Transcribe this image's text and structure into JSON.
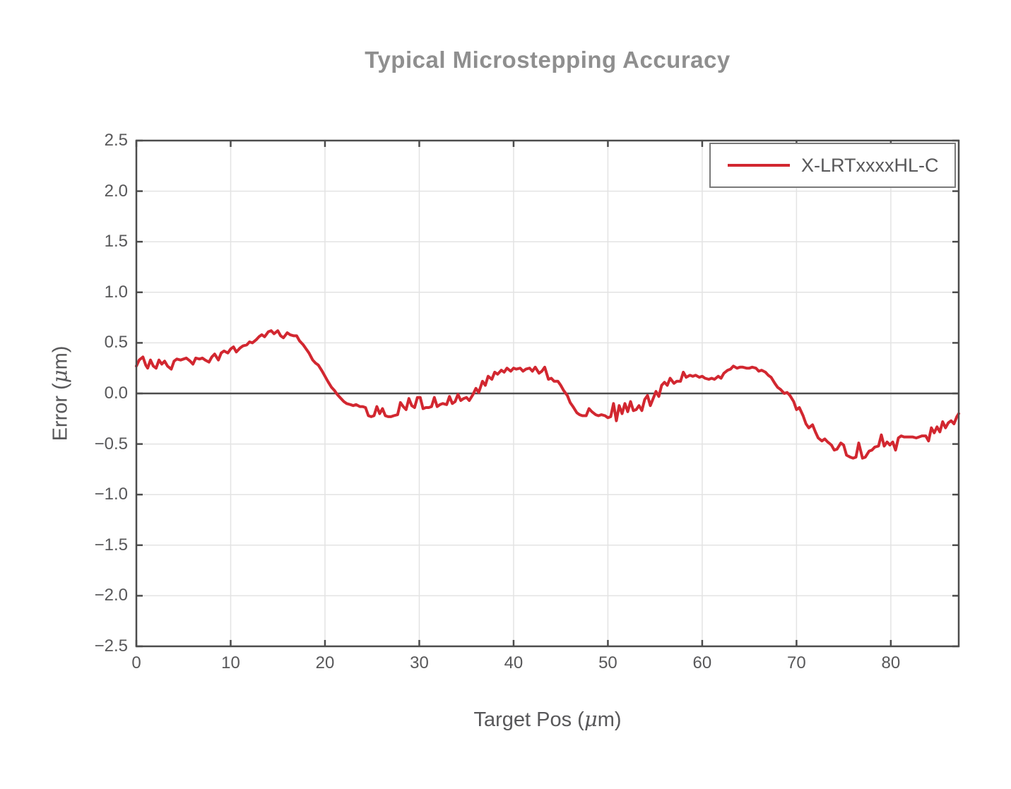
{
  "colors": {
    "background": "#ffffff",
    "series_red": "#d22730",
    "title_gray": "#8f8f8f",
    "axis_text": "#58585a",
    "spine": "#4c4c4c",
    "grid": "#e3e3e3",
    "zero_line": "#4c4c4c"
  },
  "chart_data": {
    "type": "line",
    "title": "Typical Microstepping Accuracy",
    "xlabel": "Target Pos (μm)",
    "ylabel": "Error (μm)",
    "xlim": [
      0,
      87.2
    ],
    "ylim": [
      -2.5,
      2.5
    ],
    "xticks": [
      0,
      10,
      20,
      30,
      40,
      50,
      60,
      70,
      80
    ],
    "yticks": [
      -2.5,
      -2.0,
      -1.5,
      -1.0,
      -0.5,
      0.0,
      0.5,
      1.0,
      1.5,
      2.0,
      2.5
    ],
    "grid": true,
    "zero_line": true,
    "legend": {
      "position": "top-right",
      "entries": [
        "X-LRTxxxxHL-C"
      ]
    },
    "series": [
      {
        "name": "X-LRTxxxxHL-C",
        "color": "#d22730",
        "points": [
          [
            0,
            0.27
          ],
          [
            0.3,
            0.33
          ],
          [
            0.7,
            0.36
          ],
          [
            1,
            0.28
          ],
          [
            1.2,
            0.25
          ],
          [
            1.5,
            0.33
          ],
          [
            1.8,
            0.27
          ],
          [
            2.1,
            0.25
          ],
          [
            2.4,
            0.33
          ],
          [
            2.7,
            0.29
          ],
          [
            3,
            0.32
          ],
          [
            3.3,
            0.27
          ],
          [
            3.7,
            0.24
          ],
          [
            4,
            0.32
          ],
          [
            4.3,
            0.34
          ],
          [
            4.7,
            0.33
          ],
          [
            5,
            0.34
          ],
          [
            5.3,
            0.35
          ],
          [
            5.7,
            0.32
          ],
          [
            6,
            0.29
          ],
          [
            6.3,
            0.35
          ],
          [
            6.7,
            0.34
          ],
          [
            7,
            0.35
          ],
          [
            7.3,
            0.33
          ],
          [
            7.7,
            0.31
          ],
          [
            8,
            0.36
          ],
          [
            8.3,
            0.39
          ],
          [
            8.7,
            0.33
          ],
          [
            9,
            0.4
          ],
          [
            9.3,
            0.42
          ],
          [
            9.7,
            0.4
          ],
          [
            10,
            0.44
          ],
          [
            10.3,
            0.46
          ],
          [
            10.6,
            0.41
          ],
          [
            11,
            0.45
          ],
          [
            11.3,
            0.47
          ],
          [
            11.7,
            0.48
          ],
          [
            12,
            0.51
          ],
          [
            12.3,
            0.5
          ],
          [
            12.7,
            0.53
          ],
          [
            13,
            0.56
          ],
          [
            13.3,
            0.58
          ],
          [
            13.6,
            0.56
          ],
          [
            14,
            0.61
          ],
          [
            14.3,
            0.62
          ],
          [
            14.6,
            0.59
          ],
          [
            15,
            0.62
          ],
          [
            15.3,
            0.57
          ],
          [
            15.6,
            0.55
          ],
          [
            16,
            0.6
          ],
          [
            16.3,
            0.58
          ],
          [
            16.7,
            0.57
          ],
          [
            17,
            0.57
          ],
          [
            17.3,
            0.52
          ],
          [
            17.7,
            0.48
          ],
          [
            18,
            0.44
          ],
          [
            18.3,
            0.4
          ],
          [
            18.7,
            0.33
          ],
          [
            19,
            0.3
          ],
          [
            19.3,
            0.28
          ],
          [
            19.7,
            0.22
          ],
          [
            20,
            0.17
          ],
          [
            20.3,
            0.12
          ],
          [
            20.7,
            0.06
          ],
          [
            21,
            0.03
          ],
          [
            21.3,
            -0.01
          ],
          [
            21.7,
            -0.05
          ],
          [
            22,
            -0.08
          ],
          [
            22.3,
            -0.1
          ],
          [
            22.7,
            -0.11
          ],
          [
            23,
            -0.12
          ],
          [
            23.3,
            -0.11
          ],
          [
            23.7,
            -0.13
          ],
          [
            24,
            -0.13
          ],
          [
            24.3,
            -0.14
          ],
          [
            24.6,
            -0.22
          ],
          [
            24.9,
            -0.23
          ],
          [
            25.2,
            -0.22
          ],
          [
            25.5,
            -0.13
          ],
          [
            25.8,
            -0.2
          ],
          [
            26.1,
            -0.15
          ],
          [
            26.4,
            -0.22
          ],
          [
            26.7,
            -0.23
          ],
          [
            27,
            -0.23
          ],
          [
            27.3,
            -0.22
          ],
          [
            27.7,
            -0.21
          ],
          [
            28,
            -0.09
          ],
          [
            28.3,
            -0.13
          ],
          [
            28.6,
            -0.16
          ],
          [
            28.9,
            -0.05
          ],
          [
            29.2,
            -0.12
          ],
          [
            29.5,
            -0.14
          ],
          [
            29.8,
            -0.04
          ],
          [
            30.1,
            -0.04
          ],
          [
            30.4,
            -0.15
          ],
          [
            30.7,
            -0.14
          ],
          [
            31,
            -0.14
          ],
          [
            31.3,
            -0.13
          ],
          [
            31.6,
            -0.04
          ],
          [
            31.9,
            -0.13
          ],
          [
            32.2,
            -0.11
          ],
          [
            32.5,
            -0.1
          ],
          [
            32.9,
            -0.11
          ],
          [
            33.2,
            -0.03
          ],
          [
            33.5,
            -0.1
          ],
          [
            33.8,
            -0.08
          ],
          [
            34.1,
            -0.01
          ],
          [
            34.4,
            -0.07
          ],
          [
            34.7,
            -0.05
          ],
          [
            35,
            -0.04
          ],
          [
            35.3,
            -0.07
          ],
          [
            35.7,
            -0.01
          ],
          [
            36,
            0.05
          ],
          [
            36.3,
            0.01
          ],
          [
            36.7,
            0.12
          ],
          [
            37,
            0.08
          ],
          [
            37.3,
            0.17
          ],
          [
            37.7,
            0.14
          ],
          [
            38,
            0.21
          ],
          [
            38.3,
            0.19
          ],
          [
            38.7,
            0.23
          ],
          [
            39,
            0.21
          ],
          [
            39.3,
            0.25
          ],
          [
            39.7,
            0.22
          ],
          [
            40,
            0.25
          ],
          [
            40.3,
            0.24
          ],
          [
            40.7,
            0.25
          ],
          [
            41,
            0.22
          ],
          [
            41.3,
            0.24
          ],
          [
            41.7,
            0.25
          ],
          [
            42,
            0.22
          ],
          [
            42.3,
            0.26
          ],
          [
            42.7,
            0.2
          ],
          [
            43,
            0.22
          ],
          [
            43.3,
            0.26
          ],
          [
            43.7,
            0.14
          ],
          [
            44,
            0.15
          ],
          [
            44.3,
            0.12
          ],
          [
            44.7,
            0.12
          ],
          [
            45,
            0.08
          ],
          [
            45.3,
            0.03
          ],
          [
            45.7,
            -0.02
          ],
          [
            46,
            -0.09
          ],
          [
            46.3,
            -0.13
          ],
          [
            46.7,
            -0.19
          ],
          [
            47,
            -0.21
          ],
          [
            47.3,
            -0.22
          ],
          [
            47.7,
            -0.22
          ],
          [
            48,
            -0.15
          ],
          [
            48.3,
            -0.18
          ],
          [
            48.7,
            -0.21
          ],
          [
            49,
            -0.22
          ],
          [
            49.3,
            -0.21
          ],
          [
            49.7,
            -0.22
          ],
          [
            50,
            -0.24
          ],
          [
            50.3,
            -0.23
          ],
          [
            50.6,
            -0.1
          ],
          [
            50.9,
            -0.27
          ],
          [
            51.2,
            -0.12
          ],
          [
            51.5,
            -0.2
          ],
          [
            51.8,
            -0.1
          ],
          [
            52.1,
            -0.18
          ],
          [
            52.4,
            -0.08
          ],
          [
            52.7,
            -0.17
          ],
          [
            53,
            -0.16
          ],
          [
            53.3,
            -0.12
          ],
          [
            53.6,
            -0.17
          ],
          [
            53.9,
            -0.06
          ],
          [
            54.2,
            -0.02
          ],
          [
            54.5,
            -0.12
          ],
          [
            54.8,
            -0.05
          ],
          [
            55.1,
            0.02
          ],
          [
            55.4,
            -0.03
          ],
          [
            55.7,
            0.08
          ],
          [
            56,
            0.11
          ],
          [
            56.3,
            0.08
          ],
          [
            56.6,
            0.15
          ],
          [
            57,
            0.1
          ],
          [
            57.3,
            0.12
          ],
          [
            57.7,
            0.12
          ],
          [
            58,
            0.21
          ],
          [
            58.3,
            0.16
          ],
          [
            58.7,
            0.18
          ],
          [
            59,
            0.17
          ],
          [
            59.3,
            0.18
          ],
          [
            59.7,
            0.16
          ],
          [
            60,
            0.17
          ],
          [
            60.3,
            0.15
          ],
          [
            60.7,
            0.14
          ],
          [
            61,
            0.15
          ],
          [
            61.3,
            0.14
          ],
          [
            61.7,
            0.17
          ],
          [
            62,
            0.15
          ],
          [
            62.3,
            0.2
          ],
          [
            62.7,
            0.23
          ],
          [
            63,
            0.24
          ],
          [
            63.3,
            0.27
          ],
          [
            63.7,
            0.25
          ],
          [
            64,
            0.26
          ],
          [
            64.3,
            0.26
          ],
          [
            64.7,
            0.25
          ],
          [
            65,
            0.25
          ],
          [
            65.3,
            0.26
          ],
          [
            65.7,
            0.25
          ],
          [
            66,
            0.22
          ],
          [
            66.3,
            0.23
          ],
          [
            66.7,
            0.21
          ],
          [
            67,
            0.18
          ],
          [
            67.3,
            0.16
          ],
          [
            67.7,
            0.1
          ],
          [
            68,
            0.06
          ],
          [
            68.3,
            0.04
          ],
          [
            68.7,
            0.0
          ],
          [
            69,
            0.01
          ],
          [
            69.3,
            -0.02
          ],
          [
            69.7,
            -0.08
          ],
          [
            70,
            -0.16
          ],
          [
            70.3,
            -0.14
          ],
          [
            70.7,
            -0.22
          ],
          [
            71,
            -0.3
          ],
          [
            71.3,
            -0.34
          ],
          [
            71.7,
            -0.31
          ],
          [
            72,
            -0.38
          ],
          [
            72.3,
            -0.44
          ],
          [
            72.7,
            -0.47
          ],
          [
            73,
            -0.45
          ],
          [
            73.3,
            -0.48
          ],
          [
            73.7,
            -0.51
          ],
          [
            74,
            -0.56
          ],
          [
            74.3,
            -0.55
          ],
          [
            74.7,
            -0.49
          ],
          [
            75,
            -0.51
          ],
          [
            75.3,
            -0.61
          ],
          [
            75.7,
            -0.63
          ],
          [
            76,
            -0.64
          ],
          [
            76.3,
            -0.63
          ],
          [
            76.6,
            -0.49
          ],
          [
            77,
            -0.64
          ],
          [
            77.3,
            -0.63
          ],
          [
            77.7,
            -0.57
          ],
          [
            78,
            -0.56
          ],
          [
            78.3,
            -0.53
          ],
          [
            78.7,
            -0.52
          ],
          [
            79,
            -0.41
          ],
          [
            79.3,
            -0.52
          ],
          [
            79.6,
            -0.48
          ],
          [
            79.9,
            -0.51
          ],
          [
            80.2,
            -0.48
          ],
          [
            80.5,
            -0.56
          ],
          [
            80.8,
            -0.44
          ],
          [
            81.1,
            -0.42
          ],
          [
            81.4,
            -0.43
          ],
          [
            81.7,
            -0.43
          ],
          [
            82,
            -0.43
          ],
          [
            82.3,
            -0.43
          ],
          [
            82.7,
            -0.44
          ],
          [
            83,
            -0.43
          ],
          [
            83.3,
            -0.42
          ],
          [
            83.7,
            -0.42
          ],
          [
            84,
            -0.47
          ],
          [
            84.3,
            -0.34
          ],
          [
            84.6,
            -0.39
          ],
          [
            84.9,
            -0.33
          ],
          [
            85.2,
            -0.38
          ],
          [
            85.5,
            -0.28
          ],
          [
            85.8,
            -0.34
          ],
          [
            86.1,
            -0.29
          ],
          [
            86.4,
            -0.27
          ],
          [
            86.7,
            -0.3
          ],
          [
            87,
            -0.23
          ],
          [
            87.2,
            -0.2
          ]
        ]
      }
    ]
  }
}
